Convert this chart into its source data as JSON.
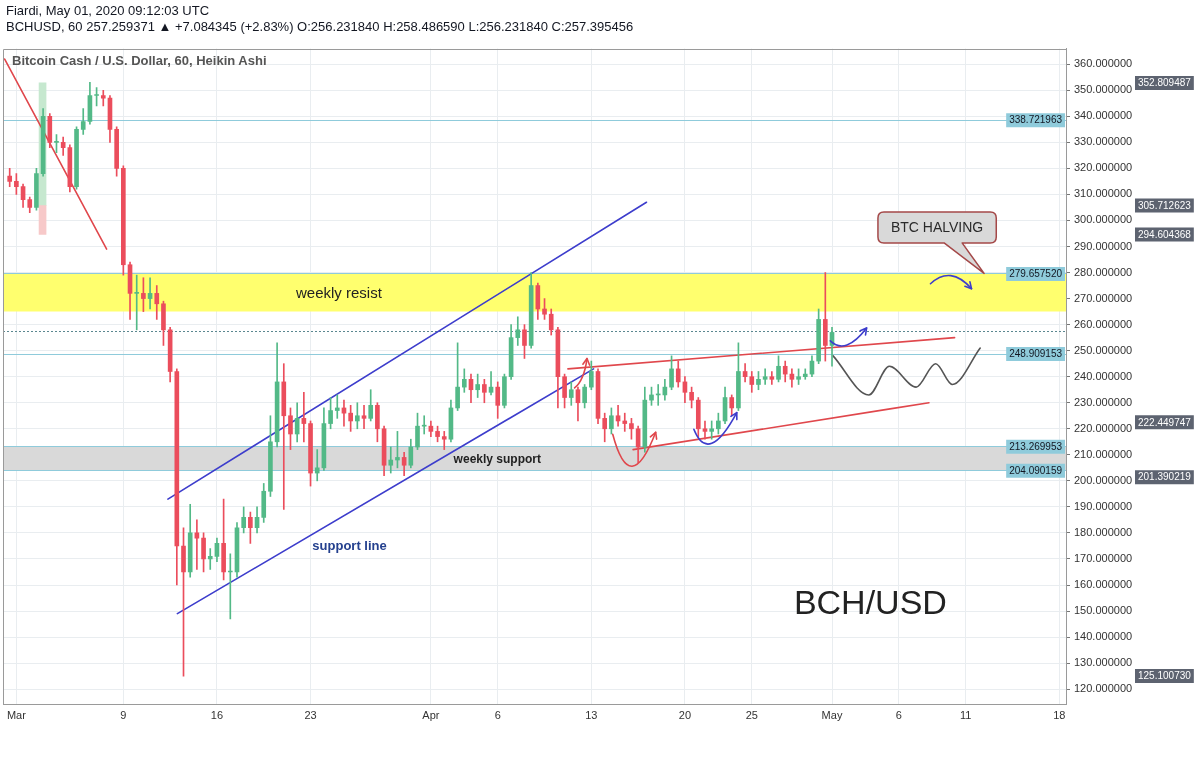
{
  "chart_data": {
    "type": "candlestick",
    "title": "Bitcoin Cash / U.S. Dollar, 60, Heikin Ashi",
    "subtitle": "BCHUSD, 60 257.259371 ▲ +7.084345 (+2.83%) O:256.231840 H:258.486590 L:256.231840 C:257.395456",
    "annotations": [
      "Fiardi, May 01, 2020 09:12:03 UTC",
      "BCH/USD",
      {
        "text": "support line",
        "x": "2020-03-25T22:00",
        "y": 188
      },
      {
        "text": "BTC HALVING",
        "x": "2020-05-12T09:00",
        "y": 279.66
      },
      "352.809487",
      "305.712623",
      "294.604368",
      "222.449747",
      "201.390219",
      "125.100730"
    ],
    "x": [
      "2020-02-29T12:00",
      "2020-03-01T00:00",
      "2020-03-01T12:00",
      "2020-03-02T00:00",
      "2020-03-02T12:00",
      "2020-03-03T00:00",
      "2020-03-03T12:00",
      "2020-03-04T00:00",
      "2020-03-04T12:00",
      "2020-03-05T00:00",
      "2020-03-05T12:00",
      "2020-03-06T00:00",
      "2020-03-06T12:00",
      "2020-03-07T00:00",
      "2020-03-07T12:00",
      "2020-03-08T00:00",
      "2020-03-08T12:00",
      "2020-03-09T00:00",
      "2020-03-09T12:00",
      "2020-03-10T00:00",
      "2020-03-10T12:00",
      "2020-03-11T00:00",
      "2020-03-11T12:00",
      "2020-03-12T00:00",
      "2020-03-12T12:00",
      "2020-03-13T00:00",
      "2020-03-13T12:00",
      "2020-03-14T00:00",
      "2020-03-14T12:00",
      "2020-03-15T00:00",
      "2020-03-15T12:00",
      "2020-03-16T00:00",
      "2020-03-16T12:00",
      "2020-03-17T00:00",
      "2020-03-17T12:00",
      "2020-03-18T00:00",
      "2020-03-18T12:00",
      "2020-03-19T00:00",
      "2020-03-19T12:00",
      "2020-03-20T00:00",
      "2020-03-20T12:00",
      "2020-03-21T00:00",
      "2020-03-21T12:00",
      "2020-03-22T00:00",
      "2020-03-22T12:00",
      "2020-03-23T00:00",
      "2020-03-23T12:00",
      "2020-03-24T00:00",
      "2020-03-24T12:00",
      "2020-03-25T00:00",
      "2020-03-25T12:00",
      "2020-03-26T00:00",
      "2020-03-26T12:00",
      "2020-03-27T00:00",
      "2020-03-27T12:00",
      "2020-03-28T00:00",
      "2020-03-28T12:00",
      "2020-03-29T00:00",
      "2020-03-29T12:00",
      "2020-03-30T00:00",
      "2020-03-30T12:00",
      "2020-03-31T00:00",
      "2020-03-31T12:00",
      "2020-04-01T00:00",
      "2020-04-01T12:00",
      "2020-04-02T00:00",
      "2020-04-02T12:00",
      "2020-04-03T00:00",
      "2020-04-03T12:00",
      "2020-04-04T00:00",
      "2020-04-04T12:00",
      "2020-04-05T00:00",
      "2020-04-05T12:00",
      "2020-04-06T00:00",
      "2020-04-06T12:00",
      "2020-04-07T00:00",
      "2020-04-07T12:00",
      "2020-04-08T00:00",
      "2020-04-08T12:00",
      "2020-04-09T00:00",
      "2020-04-09T12:00",
      "2020-04-10T00:00",
      "2020-04-10T12:00",
      "2020-04-11T00:00",
      "2020-04-11T12:00",
      "2020-04-12T00:00",
      "2020-04-12T12:00",
      "2020-04-13T00:00",
      "2020-04-13T12:00",
      "2020-04-14T00:00",
      "2020-04-14T12:00",
      "2020-04-15T00:00",
      "2020-04-15T12:00",
      "2020-04-16T00:00",
      "2020-04-16T12:00",
      "2020-04-17T00:00",
      "2020-04-17T12:00",
      "2020-04-18T00:00",
      "2020-04-18T12:00",
      "2020-04-19T00:00",
      "2020-04-19T12:00",
      "2020-04-20T00:00",
      "2020-04-20T12:00",
      "2020-04-21T00:00",
      "2020-04-21T12:00",
      "2020-04-22T00:00",
      "2020-04-22T12:00",
      "2020-04-23T00:00",
      "2020-04-23T12:00",
      "2020-04-24T00:00",
      "2020-04-24T12:00",
      "2020-04-25T00:00",
      "2020-04-25T12:00",
      "2020-04-26T00:00",
      "2020-04-26T12:00",
      "2020-04-27T00:00",
      "2020-04-27T12:00",
      "2020-04-28T00:00",
      "2020-04-28T12:00",
      "2020-04-29T00:00",
      "2020-04-29T12:00",
      "2020-04-30T00:00",
      "2020-04-30T12:00",
      "2020-05-01T00:00"
    ],
    "ohlc": [
      [
        317,
        320,
        313,
        315
      ],
      [
        315,
        318,
        310,
        313
      ],
      [
        313,
        314,
        305,
        308
      ],
      [
        308,
        309,
        303,
        305
      ],
      [
        305,
        320,
        304,
        318
      ],
      [
        318,
        343,
        317,
        340
      ],
      [
        340,
        341,
        328,
        330
      ],
      [
        330,
        333,
        326,
        330
      ],
      [
        330,
        332,
        325,
        328
      ],
      [
        328,
        329,
        311,
        313
      ],
      [
        313,
        336,
        312,
        335
      ],
      [
        335,
        343,
        333,
        338
      ],
      [
        338,
        353,
        337,
        348
      ],
      [
        348,
        351,
        344,
        348
      ],
      [
        348,
        350,
        344,
        347
      ],
      [
        347,
        348,
        330,
        335
      ],
      [
        335,
        336,
        317,
        320
      ],
      [
        320,
        321,
        279,
        283
      ],
      [
        283,
        284,
        262,
        272
      ],
      [
        272,
        279,
        258,
        272
      ],
      [
        272,
        278,
        265,
        270
      ],
      [
        270,
        278,
        266,
        272
      ],
      [
        272,
        275,
        262,
        268
      ],
      [
        268,
        269,
        252,
        258
      ],
      [
        258,
        259,
        238,
        242
      ],
      [
        242,
        243,
        160,
        175
      ],
      [
        175,
        182,
        125,
        165
      ],
      [
        165,
        191,
        163,
        180
      ],
      [
        180,
        185,
        166,
        178
      ],
      [
        178,
        180,
        165,
        170
      ],
      [
        170,
        174,
        166,
        171
      ],
      [
        171,
        178,
        169,
        176
      ],
      [
        176,
        193,
        162,
        165
      ],
      [
        165,
        172,
        147,
        165
      ],
      [
        165,
        184,
        163,
        182
      ],
      [
        182,
        190,
        180,
        186
      ],
      [
        186,
        188,
        176,
        182
      ],
      [
        182,
        190,
        180,
        186
      ],
      [
        186,
        199,
        184,
        196
      ],
      [
        196,
        225,
        194,
        215
      ],
      [
        215,
        253,
        213,
        238
      ],
      [
        238,
        245,
        189,
        225
      ],
      [
        225,
        228,
        212,
        218
      ],
      [
        218,
        230,
        215,
        224
      ],
      [
        224,
        234,
        215,
        222
      ],
      [
        222,
        223,
        198,
        203
      ],
      [
        203,
        212,
        200,
        205
      ],
      [
        205,
        228,
        204,
        222
      ],
      [
        222,
        232,
        220,
        227
      ],
      [
        227,
        233,
        224,
        228
      ],
      [
        228,
        231,
        221,
        226
      ],
      [
        226,
        229,
        219,
        223
      ],
      [
        223,
        230,
        220,
        225
      ],
      [
        225,
        229,
        220,
        224
      ],
      [
        224,
        235,
        223,
        229
      ],
      [
        229,
        230,
        215,
        220
      ],
      [
        220,
        221,
        202,
        206
      ],
      [
        206,
        213,
        203,
        208
      ],
      [
        208,
        219,
        205,
        209
      ],
      [
        209,
        211,
        202,
        206
      ],
      [
        206,
        216,
        205,
        213
      ],
      [
        213,
        226,
        212,
        221
      ],
      [
        221,
        225,
        218,
        221
      ],
      [
        221,
        223,
        217,
        219
      ],
      [
        219,
        221,
        215,
        217
      ],
      [
        217,
        219,
        212,
        216
      ],
      [
        216,
        231,
        215,
        228
      ],
      [
        228,
        253,
        227,
        236
      ],
      [
        236,
        243,
        234,
        239
      ],
      [
        239,
        241,
        230,
        235
      ],
      [
        235,
        241,
        232,
        237
      ],
      [
        237,
        239,
        230,
        234
      ],
      [
        234,
        242,
        233,
        236
      ],
      [
        236,
        238,
        224,
        229
      ],
      [
        229,
        241,
        228,
        240
      ],
      [
        240,
        260,
        239,
        255
      ],
      [
        255,
        263,
        252,
        258
      ],
      [
        258,
        260,
        247,
        252
      ],
      [
        252,
        280,
        251,
        275
      ],
      [
        275,
        276,
        262,
        266
      ],
      [
        266,
        270,
        262,
        264
      ],
      [
        264,
        266,
        256,
        258
      ],
      [
        258,
        259,
        228,
        240
      ],
      [
        240,
        241,
        228,
        232
      ],
      [
        232,
        238,
        229,
        235
      ],
      [
        235,
        236,
        223,
        230
      ],
      [
        230,
        237,
        228,
        236
      ],
      [
        236,
        246,
        235,
        242
      ],
      [
        242,
        243,
        222,
        224
      ],
      [
        224,
        226,
        215,
        220
      ],
      [
        220,
        228,
        218,
        225
      ],
      [
        225,
        229,
        221,
        223
      ],
      [
        223,
        226,
        219,
        222
      ],
      [
        222,
        224,
        216,
        220
      ],
      [
        220,
        221,
        207,
        213
      ],
      [
        213,
        236,
        211,
        231
      ],
      [
        231,
        236,
        229,
        233
      ],
      [
        233,
        237,
        229,
        233
      ],
      [
        233,
        239,
        231,
        236
      ],
      [
        236,
        248,
        235,
        243
      ],
      [
        243,
        246,
        236,
        238
      ],
      [
        238,
        240,
        230,
        234
      ],
      [
        234,
        236,
        228,
        231
      ],
      [
        231,
        232,
        217,
        220
      ],
      [
        220,
        223,
        216,
        219
      ],
      [
        219,
        223,
        216,
        220
      ],
      [
        220,
        226,
        218,
        223
      ],
      [
        223,
        236,
        222,
        232
      ],
      [
        232,
        233,
        225,
        228
      ],
      [
        228,
        253,
        227,
        242
      ],
      [
        242,
        245,
        238,
        240
      ],
      [
        240,
        242,
        234,
        237
      ],
      [
        237,
        242,
        235,
        239
      ],
      [
        239,
        243,
        237,
        240
      ],
      [
        240,
        242,
        237,
        239
      ],
      [
        239,
        248,
        238,
        244
      ],
      [
        244,
        246,
        238,
        241
      ],
      [
        241,
        243,
        236,
        239
      ],
      [
        239,
        243,
        237,
        240
      ],
      [
        240,
        243,
        239,
        241
      ],
      [
        241,
        248,
        240,
        246
      ],
      [
        246,
        266,
        245,
        262
      ],
      [
        262,
        280,
        246,
        252
      ],
      [
        252,
        259,
        244,
        257
      ]
    ],
    "colors": [
      "#eb4d5c",
      "#eb4d5c",
      "#eb4d5c",
      "#eb4d5c",
      "#53b987",
      "#53b987",
      "#eb4d5c",
      "#53b987",
      "#eb4d5c",
      "#eb4d5c",
      "#53b987",
      "#53b987",
      "#53b987",
      "#53b987",
      "#eb4d5c",
      "#eb4d5c",
      "#eb4d5c",
      "#eb4d5c",
      "#eb4d5c",
      "#53b987",
      "#eb4d5c",
      "#53b987",
      "#eb4d5c",
      "#eb4d5c",
      "#eb4d5c",
      "#eb4d5c",
      "#eb4d5c",
      "#53b987",
      "#eb4d5c",
      "#eb4d5c",
      "#53b987",
      "#53b987",
      "#eb4d5c",
      "#53b987",
      "#53b987",
      "#53b987",
      "#eb4d5c",
      "#53b987",
      "#53b987",
      "#53b987",
      "#53b987",
      "#eb4d5c",
      "#eb4d5c",
      "#53b987",
      "#eb4d5c",
      "#eb4d5c",
      "#53b987",
      "#53b987",
      "#53b987",
      "#53b987",
      "#eb4d5c",
      "#eb4d5c",
      "#53b987",
      "#eb4d5c",
      "#53b987",
      "#eb4d5c",
      "#eb4d5c",
      "#53b987",
      "#53b987",
      "#eb4d5c",
      "#53b987",
      "#53b987",
      "#53b987",
      "#eb4d5c",
      "#eb4d5c",
      "#eb4d5c",
      "#53b987",
      "#53b987",
      "#53b987",
      "#eb4d5c",
      "#53b987",
      "#eb4d5c",
      "#53b987",
      "#eb4d5c",
      "#53b987",
      "#53b987",
      "#53b987",
      "#eb4d5c",
      "#53b987",
      "#eb4d5c",
      "#eb4d5c",
      "#eb4d5c",
      "#eb4d5c",
      "#eb4d5c",
      "#53b987",
      "#eb4d5c",
      "#53b987",
      "#53b987",
      "#eb4d5c",
      "#eb4d5c",
      "#53b987",
      "#eb4d5c",
      "#eb4d5c",
      "#eb4d5c",
      "#eb4d5c",
      "#53b987",
      "#53b987",
      "#53b987",
      "#53b987",
      "#53b987",
      "#eb4d5c",
      "#eb4d5c",
      "#eb4d5c",
      "#eb4d5c",
      "#eb4d5c",
      "#53b987",
      "#53b987",
      "#53b987",
      "#eb4d5c",
      "#53b987",
      "#eb4d5c",
      "#eb4d5c",
      "#53b987",
      "#53b987",
      "#eb4d5c",
      "#53b987",
      "#eb4d5c",
      "#eb4d5c",
      "#53b987",
      "#53b987",
      "#53b987",
      "#53b987",
      "#eb4d5c",
      "#53b987"
    ],
    "series": [
      {
        "type": "line",
        "x": [
          "2020-02-29T03:00",
          "2020-03-07T18:00"
        ],
        "values": [
          362,
          289
        ],
        "color": "#e0474c"
      },
      {
        "type": "line",
        "x": [
          "2020-03-12T08:00",
          "2020-04-17T03:00"
        ],
        "values": [
          193,
          307
        ],
        "color": "#3d3dcc"
      },
      {
        "type": "line",
        "x": [
          "2020-03-13T01:00",
          "2020-04-13T04:00"
        ],
        "values": [
          149,
          243
        ],
        "color": "#3d3dcc"
      },
      {
        "type": "line",
        "x": [
          "2020-04-11T06:00",
          "2020-05-10T04:00"
        ],
        "values": [
          243,
          255
        ],
        "color": "#e0474c"
      },
      {
        "type": "line",
        "x": [
          "2020-04-16T03:00",
          "2020-05-08T06:00"
        ],
        "values": [
          212,
          230
        ],
        "color": "#e0474c"
      },
      {
        "type": "line",
        "x": [
          "2020-05-01T02:00",
          "2020-05-03T18:00",
          "2020-05-05T07:00",
          "2020-05-07T07:00",
          "2020-05-08T18:00",
          "2020-05-10T00:00",
          "2020-05-12T02:00"
        ],
        "values": [
          248,
          233,
          244,
          236,
          245,
          237,
          251
        ],
        "color": "#555555"
      },
      {
        "type": "bar",
        "x": [
          "2020-03-02T23:00",
          "2020-03-02T23:00"
        ],
        "base": [
          305.712623,
          305.712623
        ],
        "values": [
          47.096864,
          -11.108255
        ],
        "colors": [
          "#c6e8cf",
          "#f7c9c9"
        ]
      }
    ],
    "xlim": [
      "2020-02-29T00:00",
      "2020-05-18T12:00"
    ],
    "ylim": [
      114,
      366
    ],
    "xticks": [
      {
        "value": "2020-03-01",
        "label": "Mar"
      },
      {
        "value": "2020-03-09",
        "label": "9"
      },
      {
        "value": "2020-03-16",
        "label": "16"
      },
      {
        "value": "2020-03-23",
        "label": "23"
      },
      {
        "value": "2020-04-01",
        "label": "Apr"
      },
      {
        "value": "2020-04-06",
        "label": "6"
      },
      {
        "value": "2020-04-13",
        "label": "13"
      },
      {
        "value": "2020-04-20",
        "label": "20"
      },
      {
        "value": "2020-04-25",
        "label": "25"
      },
      {
        "value": "2020-05-01",
        "label": "May"
      },
      {
        "value": "2020-05-06",
        "label": "6"
      },
      {
        "value": "2020-05-11",
        "label": "11"
      },
      {
        "value": "2020-05-18",
        "label": "18"
      }
    ],
    "yticks": [
      {
        "value": 120,
        "label": "120.000000"
      },
      {
        "value": 130,
        "label": "130.000000"
      },
      {
        "value": 140,
        "label": "140.000000"
      },
      {
        "value": 150,
        "label": "150.000000"
      },
      {
        "value": 160,
        "label": "160.000000"
      },
      {
        "value": 170,
        "label": "170.000000"
      },
      {
        "value": 180,
        "label": "180.000000"
      },
      {
        "value": 190,
        "label": "190.000000"
      },
      {
        "value": 200,
        "label": "200.000000"
      },
      {
        "value": 210,
        "label": "210.000000"
      },
      {
        "value": 220,
        "label": "220.000000"
      },
      {
        "value": 230,
        "label": "230.000000"
      },
      {
        "value": 240,
        "label": "240.000000"
      },
      {
        "value": 250,
        "label": "250.000000"
      },
      {
        "value": 260,
        "label": "260.000000"
      },
      {
        "value": 270,
        "label": "270.000000"
      },
      {
        "value": 280,
        "label": "280.000000"
      },
      {
        "value": 290,
        "label": "290.000000"
      },
      {
        "value": 300,
        "label": "300.000000"
      },
      {
        "value": 310,
        "label": "310.000000"
      },
      {
        "value": 320,
        "label": "320.000000"
      },
      {
        "value": 330,
        "label": "330.000000"
      },
      {
        "value": 340,
        "label": "340.000000"
      },
      {
        "value": 350,
        "label": "350.000000"
      },
      {
        "value": 360,
        "label": "360.000000"
      }
    ],
    "grid": true,
    "ref_lines": [
      {
        "axis": "y",
        "value": 338.721963,
        "label": "338.721963",
        "color": "#8fcbdb"
      },
      {
        "axis": "y",
        "value": 279.65752,
        "label": "279.657520",
        "color": "#8fcbdb"
      },
      {
        "axis": "y",
        "value": 248.909153,
        "label": "248.909153",
        "color": "#8fcbdb"
      },
      {
        "axis": "y",
        "value": 213.269953,
        "label": "213.269953",
        "color": "#8fcbdb"
      },
      {
        "axis": "y",
        "value": 204.090159,
        "label": "204.090159",
        "color": "#8fcbdb"
      },
      {
        "axis": "y",
        "value": 257.395456,
        "color": "#5b8790",
        "line_style": "dotted"
      }
    ],
    "bands": [
      {
        "axis": "y",
        "from": 265,
        "to": 279.66,
        "label": "weekly resist",
        "color": "#ffff6e"
      },
      {
        "axis": "y",
        "from": 204.090159,
        "to": 213.269953,
        "label": "weekly support",
        "color": "#d9d9d9"
      }
    ]
  }
}
